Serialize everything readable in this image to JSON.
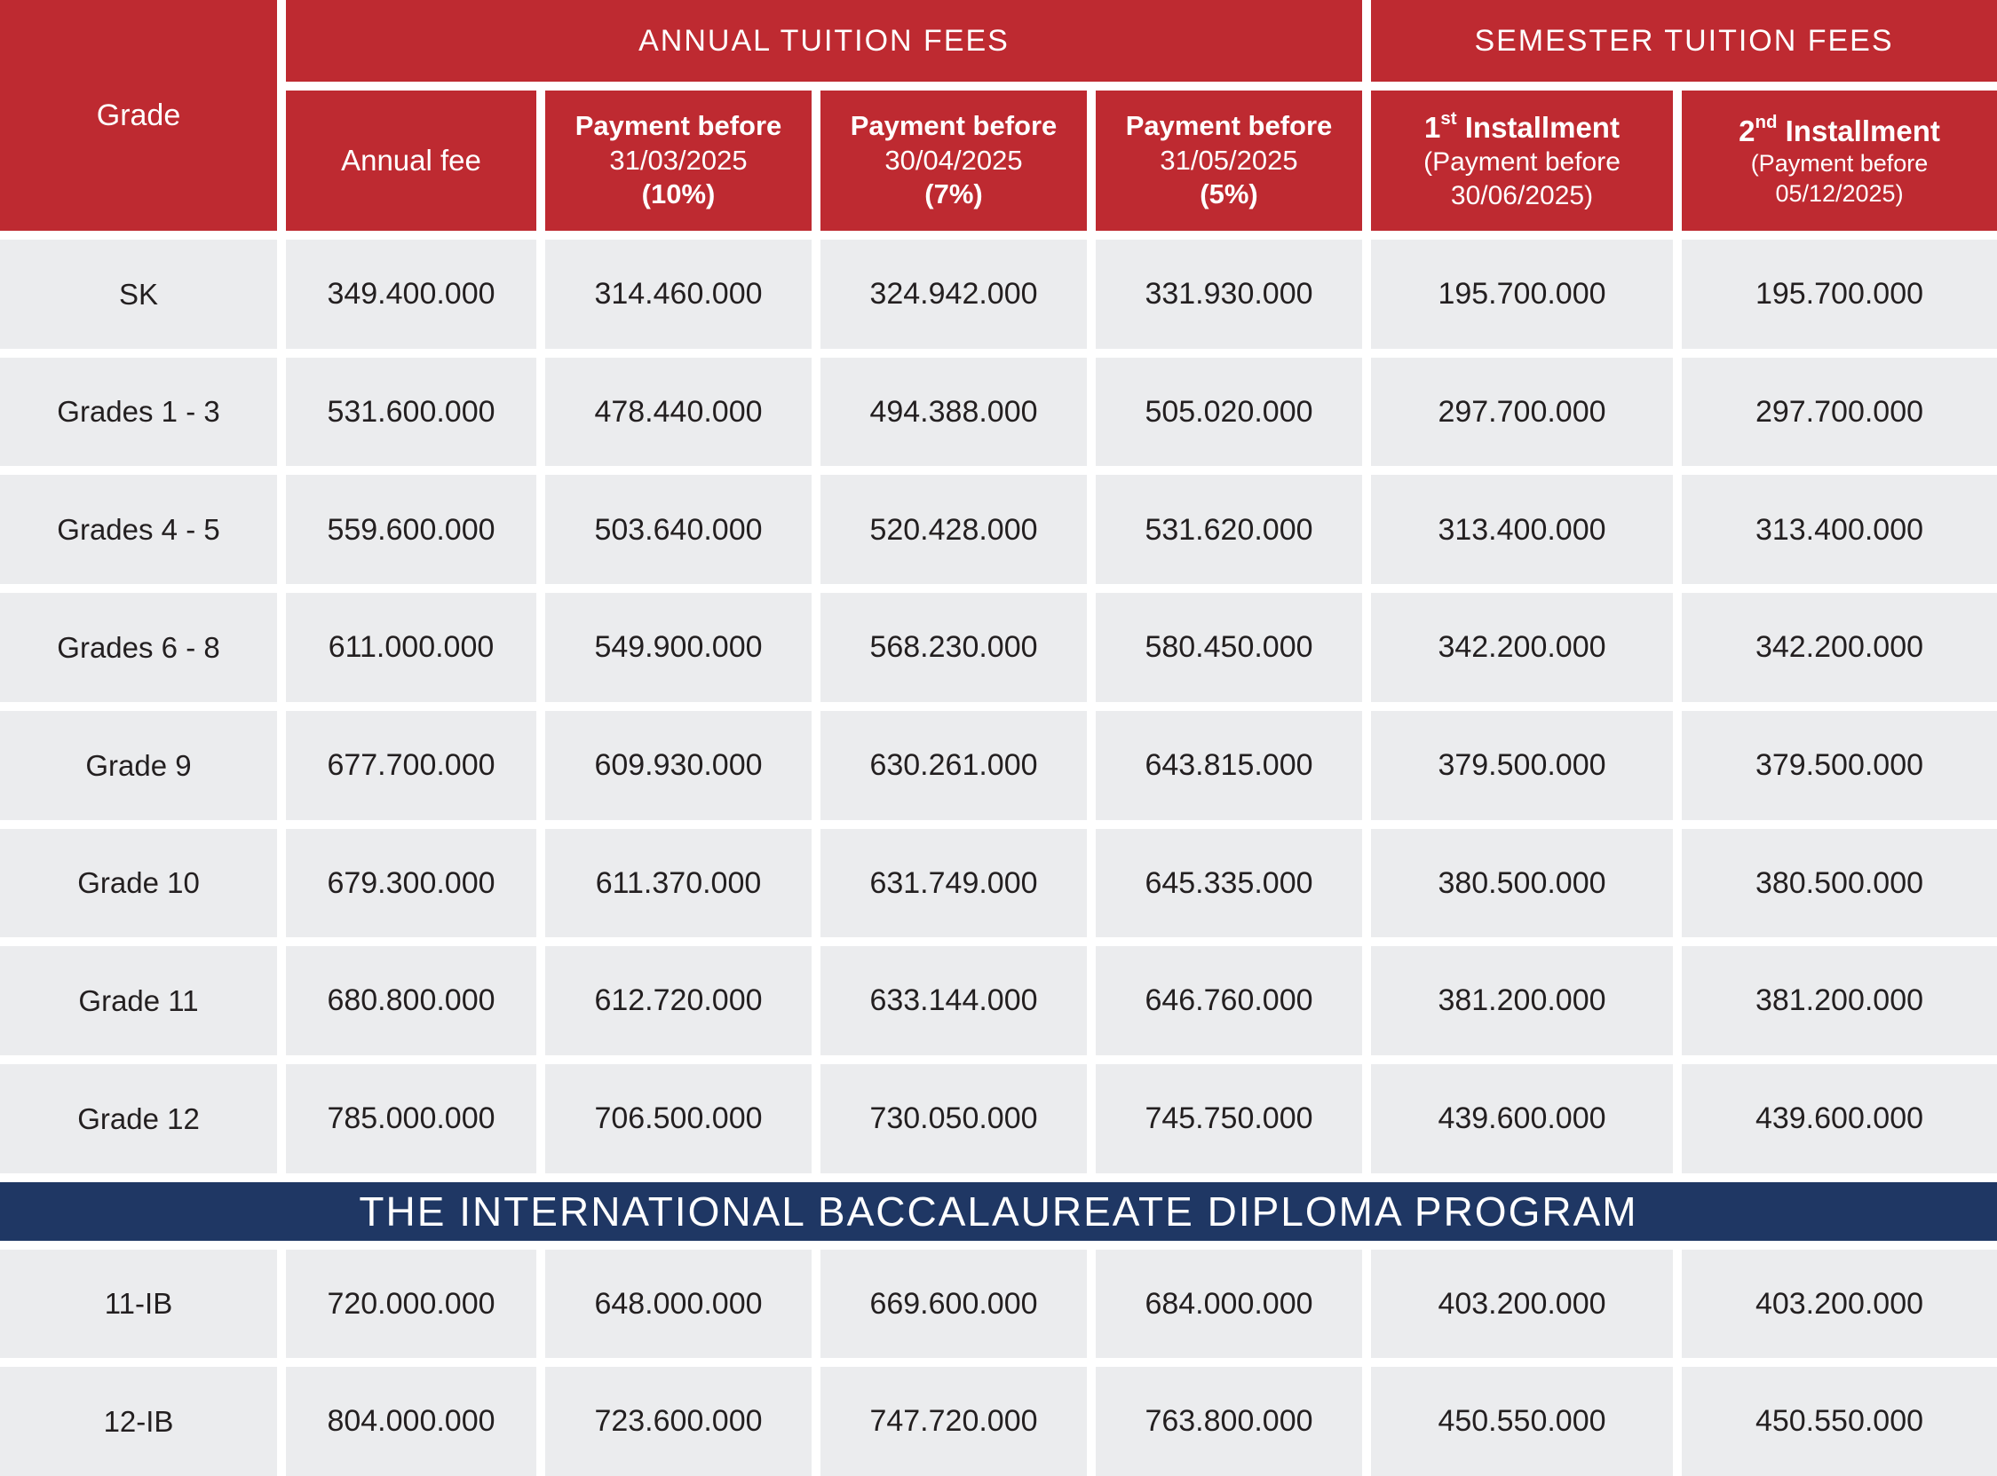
{
  "colors": {
    "header_red": "#BE2A31",
    "banner_navy": "#1F3764",
    "cell_gray": "#EBECEE",
    "text_dark": "#231F20"
  },
  "header": {
    "grade": "Grade",
    "annual_group": "ANNUAL TUITION FEES",
    "semester_group": "SEMESTER TUITION FEES",
    "annual_fee": "Annual fee",
    "pay1": {
      "line1": "Payment before",
      "date": "31/03/2025",
      "discount": "(10%)"
    },
    "pay2": {
      "line1": "Payment before",
      "date": "30/04/2025",
      "discount": "(7%)"
    },
    "pay3": {
      "line1": "Payment before",
      "date": "31/05/2025",
      "discount": "(5%)"
    },
    "inst1": {
      "num": "1",
      "ordinal": "st",
      "title": " Installment",
      "paren_line1": "(Payment before",
      "paren_line2": "30/06/2025)"
    },
    "inst2": {
      "num": "2",
      "ordinal": "nd",
      "title": " Installment",
      "paren_line1": "(Payment before",
      "paren_line2": "05/12/2025)"
    }
  },
  "rows": [
    {
      "grade": "SK",
      "annual_fee": "349.400.000",
      "pay1": "314.460.000",
      "pay2": "324.942.000",
      "pay3": "331.930.000",
      "inst1": "195.700.000",
      "inst2": "195.700.000"
    },
    {
      "grade": "Grades 1 - 3",
      "annual_fee": "531.600.000",
      "pay1": "478.440.000",
      "pay2": "494.388.000",
      "pay3": "505.020.000",
      "inst1": "297.700.000",
      "inst2": "297.700.000"
    },
    {
      "grade": "Grades 4 - 5",
      "annual_fee": "559.600.000",
      "pay1": "503.640.000",
      "pay2": "520.428.000",
      "pay3": "531.620.000",
      "inst1": "313.400.000",
      "inst2": "313.400.000"
    },
    {
      "grade": "Grades 6 - 8",
      "annual_fee": "611.000.000",
      "pay1": "549.900.000",
      "pay2": "568.230.000",
      "pay3": "580.450.000",
      "inst1": "342.200.000",
      "inst2": "342.200.000"
    },
    {
      "grade": "Grade 9",
      "annual_fee": "677.700.000",
      "pay1": "609.930.000",
      "pay2": "630.261.000",
      "pay3": "643.815.000",
      "inst1": "379.500.000",
      "inst2": "379.500.000"
    },
    {
      "grade": "Grade 10",
      "annual_fee": "679.300.000",
      "pay1": "611.370.000",
      "pay2": "631.749.000",
      "pay3": "645.335.000",
      "inst1": "380.500.000",
      "inst2": "380.500.000"
    },
    {
      "grade": "Grade 11",
      "annual_fee": "680.800.000",
      "pay1": "612.720.000",
      "pay2": "633.144.000",
      "pay3": "646.760.000",
      "inst1": "381.200.000",
      "inst2": "381.200.000"
    },
    {
      "grade": "Grade 12",
      "annual_fee": "785.000.000",
      "pay1": "706.500.000",
      "pay2": "730.050.000",
      "pay3": "745.750.000",
      "inst1": "439.600.000",
      "inst2": "439.600.000"
    }
  ],
  "banner": "THE INTERNATIONAL BACCALAUREATE DIPLOMA PROGRAM",
  "ib_rows": [
    {
      "grade": "11-IB",
      "annual_fee": "720.000.000",
      "pay1": "648.000.000",
      "pay2": "669.600.000",
      "pay3": "684.000.000",
      "inst1": "403.200.000",
      "inst2": "403.200.000"
    },
    {
      "grade": "12-IB",
      "annual_fee": "804.000.000",
      "pay1": "723.600.000",
      "pay2": "747.720.000",
      "pay3": "763.800.000",
      "inst1": "450.550.000",
      "inst2": "450.550.000"
    }
  ]
}
